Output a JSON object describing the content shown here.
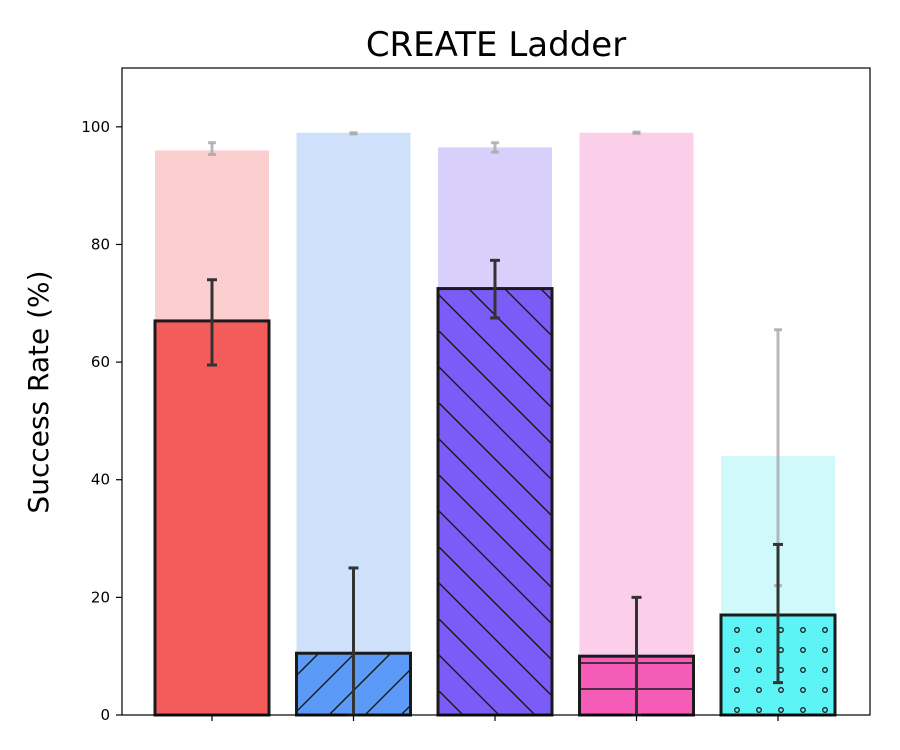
{
  "chart_data": {
    "type": "bar",
    "title": "CREATE Ladder",
    "xlabel": "",
    "ylabel": "Success Rate (%)",
    "ylim": [
      0,
      110
    ],
    "yticks": [
      0,
      20,
      40,
      60,
      80,
      100
    ],
    "categories": [
      "",
      "",
      "",
      "",
      ""
    ],
    "grid": false,
    "legend": "none",
    "series": [
      {
        "role": "background",
        "values": [
          96,
          99,
          96.5,
          99,
          44
        ],
        "error_low": [
          95.3,
          98.8,
          95.7,
          98.9,
          22
        ],
        "error_high": [
          97.3,
          99.0,
          97.3,
          99.1,
          65.5
        ]
      },
      {
        "role": "foreground",
        "values": [
          67,
          10.5,
          72.5,
          10,
          17
        ],
        "error_low": [
          59.5,
          0,
          67.5,
          0,
          5.5
        ],
        "error_high": [
          74,
          25,
          77.3,
          20,
          29
        ]
      }
    ],
    "colors": {
      "light": [
        "#fbcfcf",
        "#cfe0fb",
        "#d9cffb",
        "#fbcfea",
        "#cff9fb"
      ],
      "dark": [
        "#f45c5c",
        "#5b9af7",
        "#7b5cf7",
        "#f55cb8",
        "#5cf4f4"
      ],
      "hatch": [
        "none",
        "diag-up",
        "diag-down",
        "horizontal",
        "dots"
      ]
    }
  }
}
